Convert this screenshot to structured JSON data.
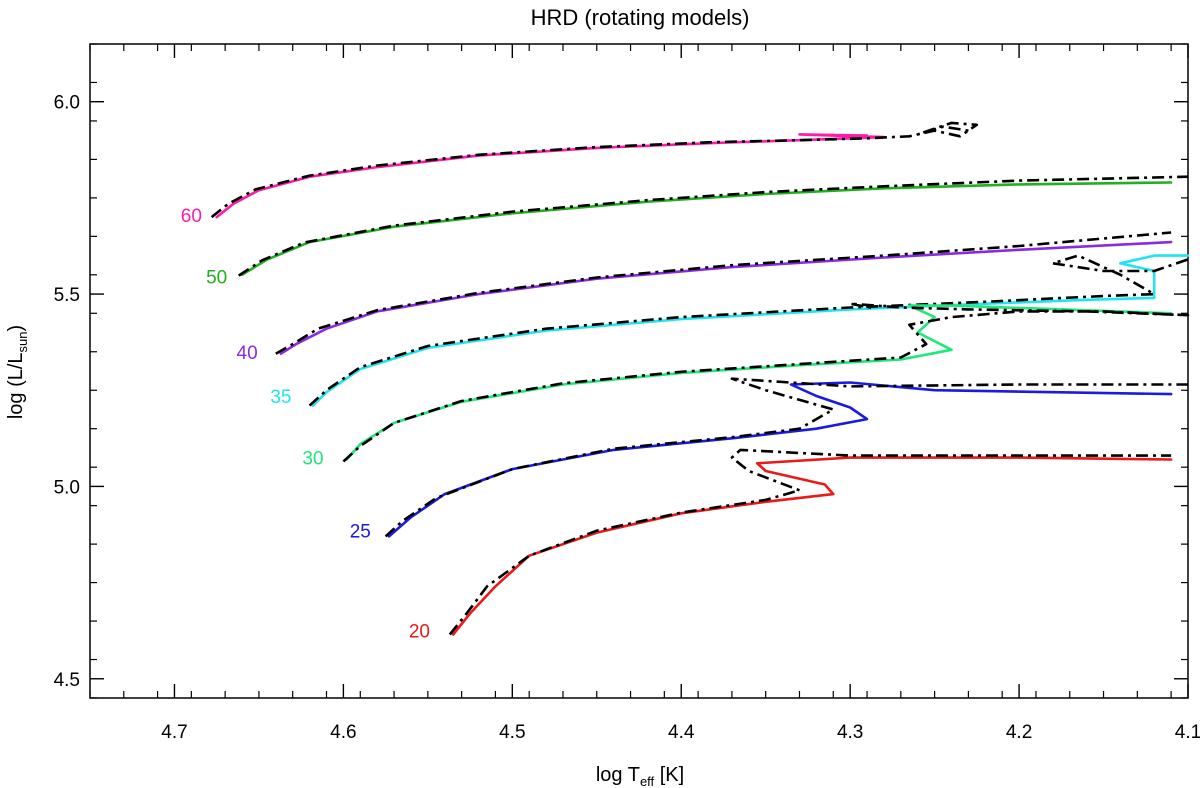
{
  "chart_data": {
    "type": "line",
    "title": "HRD (rotating models)",
    "xlabel": {
      "main": "log T",
      "sub": "eff",
      "tail": " [K]"
    },
    "ylabel": {
      "main": "log (L/L",
      "sub": "sun",
      "tail": ")"
    },
    "xlim": [
      4.75,
      4.1
    ],
    "ylim": [
      4.45,
      6.15
    ],
    "x_reversed": true,
    "x_ticks": [
      4.7,
      4.6,
      4.5,
      4.4,
      4.3,
      4.2,
      4.1
    ],
    "x_tick_labels": [
      "4.7",
      "4.6",
      "4.5",
      "4.4",
      "4.3",
      "4.2",
      "4.1"
    ],
    "y_ticks": [
      4.5,
      5.0,
      5.5,
      6.0
    ],
    "y_tick_labels": [
      "4.5",
      "5.0",
      "5.5",
      "6.0"
    ],
    "grid": false,
    "legend": "none",
    "series": [
      {
        "label": "60",
        "color": "#ff1aa8",
        "label_at": [
          4.69,
          5.705
        ],
        "solid": [
          [
            4.675,
            5.7
          ],
          [
            4.665,
            5.735
          ],
          [
            4.65,
            5.77
          ],
          [
            4.62,
            5.805
          ],
          [
            4.58,
            5.83
          ],
          [
            4.52,
            5.86
          ],
          [
            4.45,
            5.88
          ],
          [
            4.38,
            5.893
          ],
          [
            4.33,
            5.9
          ],
          [
            4.3,
            5.905
          ],
          [
            4.28,
            5.908
          ],
          [
            4.31,
            5.912
          ],
          [
            4.33,
            5.915
          ],
          [
            4.29,
            5.912
          ]
        ],
        "dashed": [
          [
            4.678,
            5.7
          ],
          [
            4.668,
            5.735
          ],
          [
            4.652,
            5.772
          ],
          [
            4.62,
            5.808
          ],
          [
            4.58,
            5.834
          ],
          [
            4.52,
            5.862
          ],
          [
            4.45,
            5.882
          ],
          [
            4.38,
            5.895
          ],
          [
            4.33,
            5.9
          ],
          [
            4.29,
            5.905
          ],
          [
            4.265,
            5.91
          ],
          [
            4.25,
            5.925
          ],
          [
            4.235,
            5.91
          ],
          [
            4.225,
            5.94
          ],
          [
            4.24,
            5.945
          ],
          [
            4.25,
            5.93
          ],
          [
            4.26,
            5.915
          ],
          [
            4.245,
            5.935
          ],
          [
            4.23,
            5.925
          ]
        ]
      },
      {
        "label": "50",
        "color": "#22b022",
        "label_at": [
          4.675,
          5.545
        ],
        "solid": [
          [
            4.66,
            5.55
          ],
          [
            4.645,
            5.59
          ],
          [
            4.62,
            5.635
          ],
          [
            4.57,
            5.675
          ],
          [
            4.5,
            5.71
          ],
          [
            4.42,
            5.74
          ],
          [
            4.35,
            5.76
          ],
          [
            4.28,
            5.775
          ],
          [
            4.2,
            5.785
          ],
          [
            4.11,
            5.79
          ]
        ],
        "dashed": [
          [
            4.662,
            5.548
          ],
          [
            4.648,
            5.588
          ],
          [
            4.623,
            5.634
          ],
          [
            4.57,
            5.678
          ],
          [
            4.5,
            5.714
          ],
          [
            4.42,
            5.744
          ],
          [
            4.35,
            5.765
          ],
          [
            4.28,
            5.78
          ],
          [
            4.2,
            5.795
          ],
          [
            4.1,
            5.805
          ]
        ]
      },
      {
        "label": "40",
        "color": "#8a2be2",
        "label_at": [
          4.657,
          5.35
        ],
        "solid": [
          [
            4.637,
            5.345
          ],
          [
            4.628,
            5.37
          ],
          [
            4.61,
            5.41
          ],
          [
            4.58,
            5.455
          ],
          [
            4.52,
            5.5
          ],
          [
            4.45,
            5.54
          ],
          [
            4.37,
            5.57
          ],
          [
            4.28,
            5.595
          ],
          [
            4.2,
            5.615
          ],
          [
            4.11,
            5.635
          ]
        ],
        "dashed": [
          [
            4.64,
            5.345
          ],
          [
            4.63,
            5.37
          ],
          [
            4.615,
            5.41
          ],
          [
            4.58,
            5.458
          ],
          [
            4.52,
            5.503
          ],
          [
            4.45,
            5.543
          ],
          [
            4.37,
            5.575
          ],
          [
            4.28,
            5.6
          ],
          [
            4.2,
            5.625
          ],
          [
            4.11,
            5.66
          ]
        ]
      },
      {
        "label": "35",
        "color": "#1ee5ee",
        "label_at": [
          4.637,
          5.235
        ],
        "solid": [
          [
            4.618,
            5.21
          ],
          [
            4.61,
            5.245
          ],
          [
            4.59,
            5.305
          ],
          [
            4.55,
            5.36
          ],
          [
            4.48,
            5.405
          ],
          [
            4.4,
            5.435
          ],
          [
            4.3,
            5.46
          ],
          [
            4.22,
            5.475
          ],
          [
            4.16,
            5.485
          ],
          [
            4.12,
            5.49
          ],
          [
            4.12,
            5.56
          ],
          [
            4.14,
            5.58
          ],
          [
            4.12,
            5.6
          ],
          [
            4.1,
            5.6
          ]
        ],
        "dashed": [
          [
            4.62,
            5.21
          ],
          [
            4.61,
            5.25
          ],
          [
            4.59,
            5.31
          ],
          [
            4.55,
            5.365
          ],
          [
            4.48,
            5.41
          ],
          [
            4.4,
            5.44
          ],
          [
            4.3,
            5.465
          ],
          [
            4.22,
            5.48
          ],
          [
            4.15,
            5.495
          ],
          [
            4.12,
            5.5
          ],
          [
            4.14,
            5.55
          ],
          [
            4.165,
            5.6
          ],
          [
            4.18,
            5.58
          ],
          [
            4.15,
            5.56
          ],
          [
            4.12,
            5.56
          ],
          [
            4.1,
            5.59
          ]
        ]
      },
      {
        "label": "30",
        "color": "#1ee87a",
        "label_at": [
          4.618,
          5.075
        ],
        "solid": [
          [
            4.598,
            5.07
          ],
          [
            4.59,
            5.11
          ],
          [
            4.57,
            5.165
          ],
          [
            4.53,
            5.22
          ],
          [
            4.47,
            5.265
          ],
          [
            4.4,
            5.295
          ],
          [
            4.33,
            5.315
          ],
          [
            4.27,
            5.33
          ],
          [
            4.24,
            5.355
          ],
          [
            4.26,
            5.4
          ],
          [
            4.25,
            5.44
          ],
          [
            4.265,
            5.47
          ],
          [
            4.24,
            5.47
          ],
          [
            4.11,
            5.45
          ]
        ],
        "dashed": [
          [
            4.6,
            5.065
          ],
          [
            4.59,
            5.105
          ],
          [
            4.57,
            5.165
          ],
          [
            4.53,
            5.222
          ],
          [
            4.47,
            5.268
          ],
          [
            4.4,
            5.298
          ],
          [
            4.33,
            5.318
          ],
          [
            4.27,
            5.335
          ],
          [
            4.255,
            5.37
          ],
          [
            4.265,
            5.42
          ],
          [
            4.24,
            5.44
          ],
          [
            4.2,
            5.455
          ],
          [
            4.15,
            5.455
          ],
          [
            4.1,
            5.445
          ],
          [
            4.16,
            5.455
          ],
          [
            4.23,
            5.46
          ],
          [
            4.27,
            5.465
          ],
          [
            4.3,
            5.475
          ],
          [
            4.285,
            5.462
          ]
        ]
      },
      {
        "label": "25",
        "color": "#1a1ae0",
        "label_at": [
          4.59,
          4.885
        ],
        "solid": [
          [
            4.573,
            4.87
          ],
          [
            4.56,
            4.92
          ],
          [
            4.54,
            4.98
          ],
          [
            4.5,
            5.045
          ],
          [
            4.44,
            5.095
          ],
          [
            4.37,
            5.125
          ],
          [
            4.32,
            5.15
          ],
          [
            4.29,
            5.175
          ],
          [
            4.3,
            5.205
          ],
          [
            4.32,
            5.235
          ],
          [
            4.335,
            5.265
          ],
          [
            4.3,
            5.27
          ],
          [
            4.25,
            5.25
          ],
          [
            4.11,
            5.24
          ]
        ],
        "dashed": [
          [
            4.575,
            4.87
          ],
          [
            4.565,
            4.91
          ],
          [
            4.545,
            4.97
          ],
          [
            4.5,
            5.045
          ],
          [
            4.44,
            5.098
          ],
          [
            4.37,
            5.128
          ],
          [
            4.33,
            5.15
          ],
          [
            4.31,
            5.2
          ],
          [
            4.35,
            5.25
          ],
          [
            4.37,
            5.28
          ],
          [
            4.3,
            5.26
          ],
          [
            4.2,
            5.265
          ],
          [
            4.1,
            5.265
          ]
        ]
      },
      {
        "label": "20",
        "color": "#e81a1a",
        "label_at": [
          4.555,
          4.625
        ],
        "solid": [
          [
            4.535,
            4.615
          ],
          [
            4.525,
            4.67
          ],
          [
            4.51,
            4.74
          ],
          [
            4.49,
            4.82
          ],
          [
            4.45,
            4.88
          ],
          [
            4.4,
            4.93
          ],
          [
            4.35,
            4.96
          ],
          [
            4.31,
            4.98
          ],
          [
            4.315,
            5.005
          ],
          [
            4.35,
            5.04
          ],
          [
            4.355,
            5.06
          ],
          [
            4.3,
            5.075
          ],
          [
            4.2,
            5.075
          ],
          [
            4.11,
            5.07
          ]
        ],
        "dashed": [
          [
            4.537,
            4.615
          ],
          [
            4.527,
            4.67
          ],
          [
            4.515,
            4.74
          ],
          [
            4.49,
            4.82
          ],
          [
            4.45,
            4.885
          ],
          [
            4.4,
            4.932
          ],
          [
            4.35,
            4.965
          ],
          [
            4.33,
            4.99
          ],
          [
            4.36,
            5.04
          ],
          [
            4.37,
            5.075
          ],
          [
            4.365,
            5.095
          ],
          [
            4.3,
            5.08
          ],
          [
            4.2,
            5.08
          ],
          [
            4.11,
            5.08
          ]
        ]
      }
    ]
  }
}
